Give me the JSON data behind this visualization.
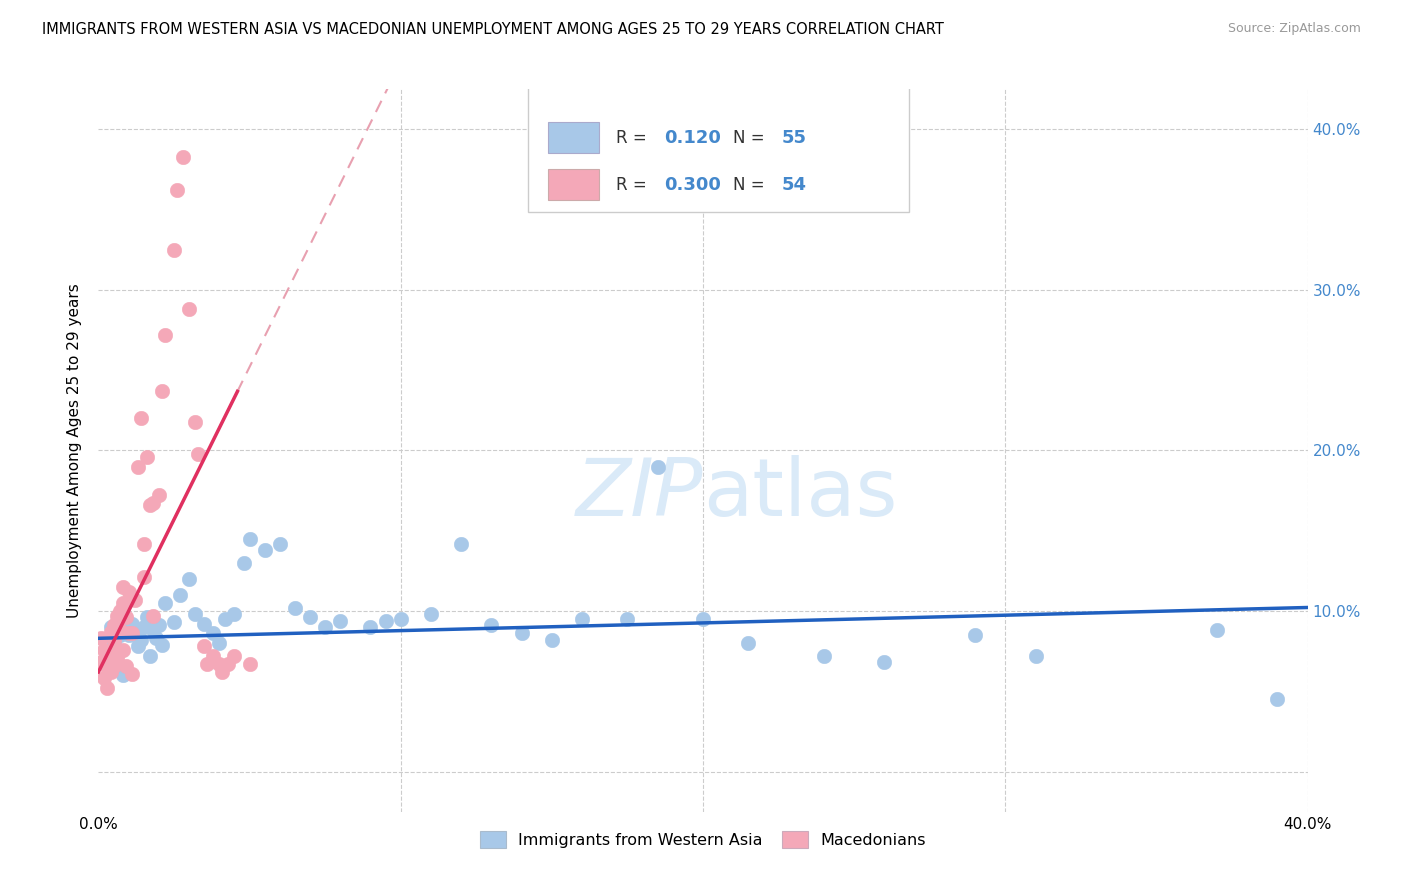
{
  "title": "IMMIGRANTS FROM WESTERN ASIA VS MACEDONIAN UNEMPLOYMENT AMONG AGES 25 TO 29 YEARS CORRELATION CHART",
  "source": "Source: ZipAtlas.com",
  "ylabel": "Unemployment Among Ages 25 to 29 years",
  "yticks": [
    0.0,
    0.1,
    0.2,
    0.3,
    0.4
  ],
  "ytick_labels_right": [
    "",
    "10.0%",
    "20.0%",
    "30.0%",
    "40.0%"
  ],
  "xlim": [
    0.0,
    0.4
  ],
  "ylim": [
    -0.025,
    0.425
  ],
  "r_blue": 0.12,
  "n_blue": 55,
  "r_pink": 0.3,
  "n_pink": 54,
  "blue_color": "#a8c8e8",
  "pink_color": "#f4a8b8",
  "trend_blue_color": "#2060c0",
  "trend_pink_solid_color": "#e03060",
  "trend_pink_dash_color": "#e8a0b0",
  "watermark_color": "#daeaf8",
  "grid_color": "#cccccc",
  "right_axis_color": "#4488cc",
  "blue_scatter_x": [
    0.004,
    0.005,
    0.006,
    0.007,
    0.008,
    0.009,
    0.01,
    0.011,
    0.012,
    0.013,
    0.014,
    0.015,
    0.016,
    0.017,
    0.018,
    0.019,
    0.02,
    0.021,
    0.022,
    0.025,
    0.027,
    0.03,
    0.032,
    0.035,
    0.038,
    0.04,
    0.042,
    0.045,
    0.048,
    0.05,
    0.055,
    0.06,
    0.065,
    0.07,
    0.075,
    0.08,
    0.09,
    0.095,
    0.1,
    0.11,
    0.12,
    0.13,
    0.14,
    0.15,
    0.16,
    0.175,
    0.185,
    0.2,
    0.215,
    0.24,
    0.26,
    0.29,
    0.31,
    0.37,
    0.39
  ],
  "blue_scatter_y": [
    0.09,
    0.08,
    0.075,
    0.085,
    0.06,
    0.095,
    0.085,
    0.092,
    0.088,
    0.078,
    0.082,
    0.09,
    0.096,
    0.072,
    0.088,
    0.083,
    0.091,
    0.079,
    0.105,
    0.093,
    0.11,
    0.12,
    0.098,
    0.092,
    0.086,
    0.08,
    0.095,
    0.098,
    0.13,
    0.145,
    0.138,
    0.142,
    0.102,
    0.096,
    0.09,
    0.094,
    0.09,
    0.094,
    0.095,
    0.098,
    0.142,
    0.091,
    0.086,
    0.082,
    0.095,
    0.095,
    0.19,
    0.095,
    0.08,
    0.072,
    0.068,
    0.085,
    0.072,
    0.088,
    0.045
  ],
  "pink_scatter_x": [
    0.001,
    0.001,
    0.002,
    0.002,
    0.003,
    0.003,
    0.003,
    0.004,
    0.004,
    0.004,
    0.005,
    0.005,
    0.005,
    0.006,
    0.006,
    0.006,
    0.007,
    0.007,
    0.007,
    0.008,
    0.008,
    0.008,
    0.009,
    0.009,
    0.01,
    0.01,
    0.011,
    0.011,
    0.012,
    0.013,
    0.014,
    0.015,
    0.015,
    0.016,
    0.017,
    0.018,
    0.018,
    0.02,
    0.021,
    0.022,
    0.025,
    0.026,
    0.028,
    0.03,
    0.032,
    0.033,
    0.035,
    0.036,
    0.038,
    0.04,
    0.041,
    0.043,
    0.045,
    0.05
  ],
  "pink_scatter_y": [
    0.083,
    0.068,
    0.076,
    0.058,
    0.072,
    0.065,
    0.052,
    0.087,
    0.076,
    0.062,
    0.091,
    0.082,
    0.066,
    0.097,
    0.086,
    0.071,
    0.1,
    0.088,
    0.075,
    0.115,
    0.105,
    0.076,
    0.096,
    0.066,
    0.112,
    0.086,
    0.086,
    0.061,
    0.107,
    0.19,
    0.22,
    0.121,
    0.142,
    0.196,
    0.166,
    0.167,
    0.097,
    0.172,
    0.237,
    0.272,
    0.325,
    0.362,
    0.383,
    0.288,
    0.218,
    0.198,
    0.078,
    0.067,
    0.072,
    0.067,
    0.062,
    0.067,
    0.072,
    0.067
  ],
  "pink_line_intercept": 0.062,
  "pink_line_slope": 3.8,
  "blue_line_intercept": 0.083,
  "blue_line_slope": 0.048
}
